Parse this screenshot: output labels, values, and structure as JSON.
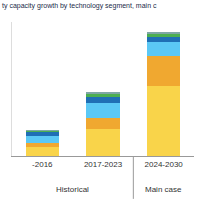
{
  "chart_data": {
    "type": "bar",
    "title": "ty capacity growth by technology segment, main c",
    "stacked": true,
    "tick_labels": "x",
    "categories": [
      "-2016",
      "2017-2023",
      "2024-2030"
    ],
    "groups": [
      {
        "label": "Historical",
        "categories": [
          "-2016",
          "2017-2023"
        ]
      },
      {
        "label": "Main case",
        "categories": [
          "2024-2030"
        ]
      }
    ],
    "ylim": [
      0,
      5000
    ],
    "series": [
      {
        "color": "#f9d44a",
        "values": [
          330,
          1000,
          2600
        ]
      },
      {
        "color": "#f0a830",
        "values": [
          160,
          400,
          1150
        ]
      },
      {
        "color": "#5bc8f5",
        "values": [
          260,
          590,
          500
        ]
      },
      {
        "color": "#1f6fb5",
        "values": [
          130,
          230,
          200
        ]
      },
      {
        "color": "#4caf50",
        "values": [
          60,
          100,
          100
        ]
      },
      {
        "color": "#7fa7a5",
        "values": [
          40,
          60,
          60
        ]
      }
    ]
  }
}
